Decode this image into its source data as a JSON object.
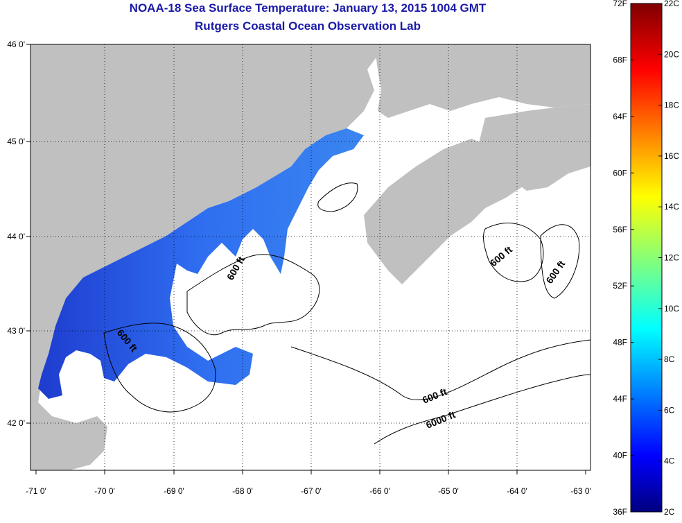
{
  "header": {
    "title": "NOAA-18 Sea Surface Temperature:  January 13, 2015 1004 GMT",
    "subtitle": "Rutgers Coastal Ocean Observation Lab"
  },
  "map": {
    "lat_labels": [
      "46 0'",
      "45 0'",
      "44 0'",
      "43 0'",
      "42 0'"
    ],
    "lon_labels": [
      "-71 0'",
      "-70 0'",
      "-69 0'",
      "-68 0'",
      "-67 0'",
      "-66 0'",
      "-65 0'",
      "-64 0'",
      "-63 0'"
    ],
    "contour_labels": [
      "600 ft",
      "600 ft",
      "600 ft",
      "600 ft",
      "600 ft",
      "6000 ft"
    ],
    "colors": {
      "land": "#c0c0c0",
      "water_nodata": "#ffffff",
      "sst": "#2f63e6"
    }
  },
  "colorbar": {
    "fahrenheit": [
      "72F",
      "68F",
      "64F",
      "60F",
      "56F",
      "52F",
      "48F",
      "44F",
      "40F",
      "36F"
    ],
    "celsius": [
      "22C",
      "20C",
      "18C",
      "16C",
      "14C",
      "12C",
      "10C",
      "8C",
      "6C",
      "4C",
      "2C"
    ]
  }
}
